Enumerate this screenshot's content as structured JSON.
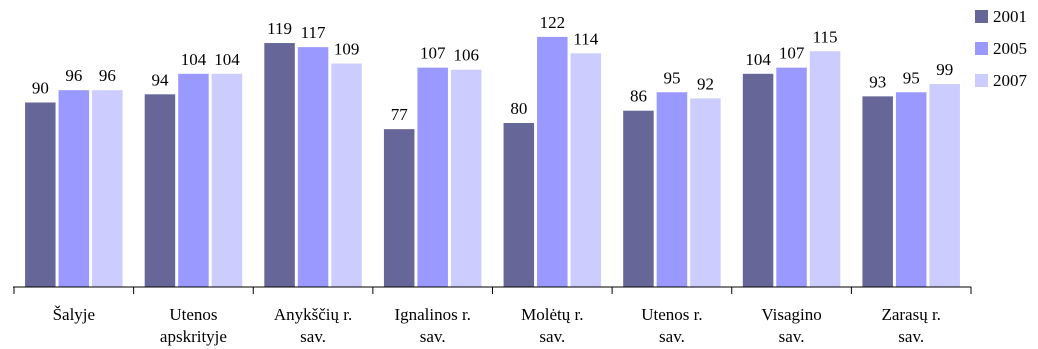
{
  "chart_data": {
    "type": "bar",
    "title": "",
    "xlabel": "",
    "ylabel": "",
    "ylim": [
      0,
      130
    ],
    "grid": false,
    "legend_position": "right",
    "categories": [
      [
        "Šalyje"
      ],
      [
        "Utenos",
        "apskrityje"
      ],
      [
        "Anykščių r.",
        "sav."
      ],
      [
        "Ignalinos r.",
        "sav."
      ],
      [
        "Molėtų r.",
        "sav."
      ],
      [
        "Utenos r.",
        "sav."
      ],
      [
        "Visagino",
        "sav."
      ],
      [
        "Zarasų r.",
        "sav."
      ]
    ],
    "series": [
      {
        "name": "2001",
        "color": "#666699",
        "values": [
          90,
          94,
          119,
          77,
          80,
          86,
          104,
          93
        ]
      },
      {
        "name": "2005",
        "color": "#9999FF",
        "values": [
          96,
          104,
          117,
          107,
          122,
          95,
          107,
          95
        ]
      },
      {
        "name": "2007",
        "color": "#CCCCFF",
        "values": [
          96,
          104,
          109,
          106,
          114,
          92,
          115,
          99
        ]
      }
    ]
  }
}
